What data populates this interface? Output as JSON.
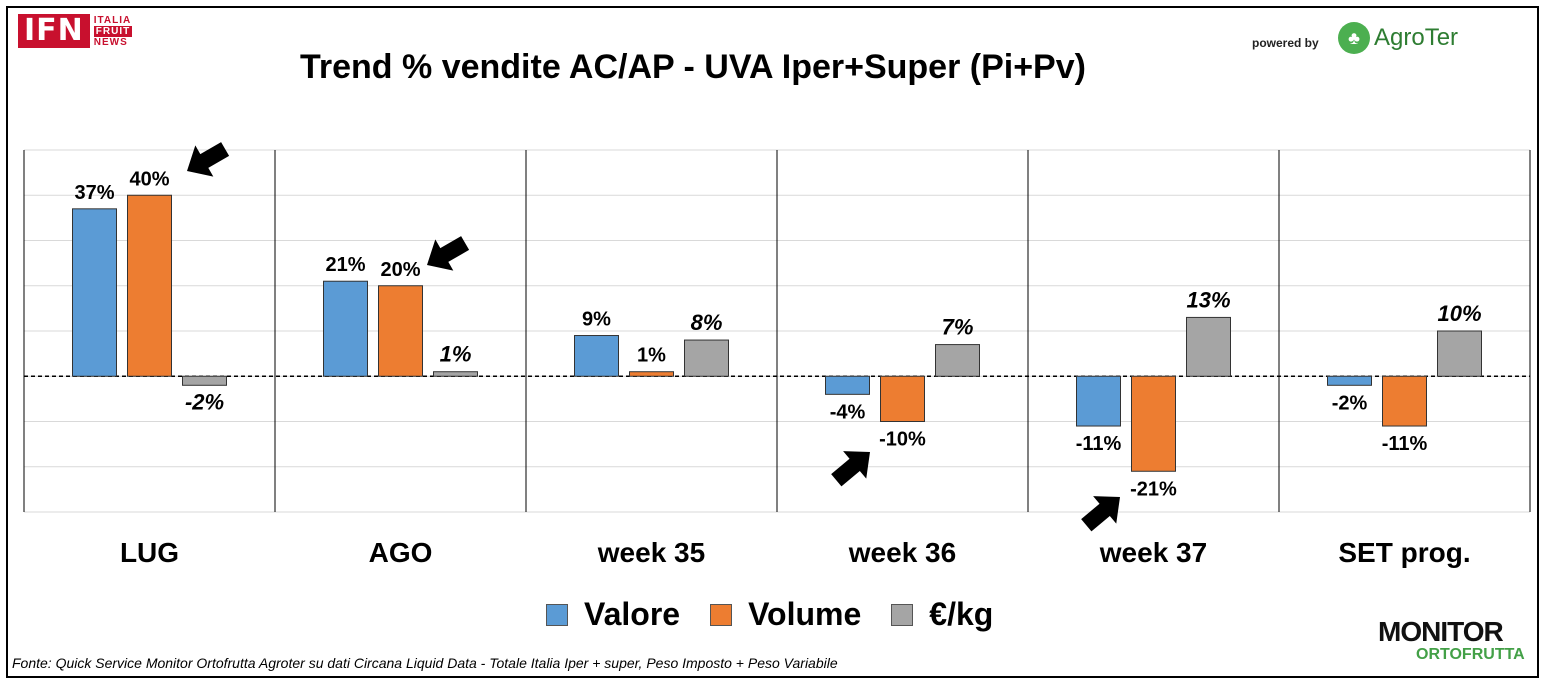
{
  "header": {
    "logo_ifn": "IFN",
    "logo_ifn_side": [
      "ITALIA",
      "FRUIT",
      "NEWS"
    ],
    "title": "Trend % vendite AC/AP - UVA  Iper+Super (Pi+Pv)",
    "powered_by": "powered by",
    "agroter": "AgroTer"
  },
  "monitor_logo": {
    "line1": "MONITOR",
    "line2": "ORTOFRUTTA"
  },
  "footer": "Fonte: Quick Service Monitor Ortofrutta Agroter su dati Circana Liquid Data - Totale Italia Iper + super, Peso Imposto + Peso Variabile",
  "colors": {
    "valore": "#5b9bd5",
    "volume": "#ed7d31",
    "eurokg": "#a5a5a5"
  },
  "chart_data": {
    "type": "bar",
    "title": "Trend % vendite AC/AP - UVA  Iper+Super (Pi+Pv)",
    "categories": [
      "LUG",
      "AGO",
      "week 35",
      "week 36",
      "week 37",
      "SET prog."
    ],
    "series": [
      {
        "name": "Valore",
        "values": [
          37,
          21,
          9,
          -4,
          -11,
          -2
        ],
        "labels": [
          "37%",
          "21%",
          "9%",
          "-4%",
          "-11%",
          "-2%"
        ]
      },
      {
        "name": "Volume",
        "values": [
          40,
          20,
          1,
          -10,
          -21,
          -11
        ],
        "labels": [
          "40%",
          "20%",
          "1%",
          "-10%",
          "-21%",
          "-11%"
        ]
      },
      {
        "name": "€/kg",
        "values": [
          -2,
          1,
          8,
          7,
          13,
          10
        ],
        "labels": [
          "-2%",
          "1%",
          "8%",
          "7%",
          "13%",
          "10%"
        ]
      }
    ],
    "ylim": [
      -30,
      50
    ],
    "gridlines": true,
    "legend_position": "bottom",
    "annotations": [
      "arrow",
      "arrow",
      "arrow",
      "arrow"
    ]
  }
}
